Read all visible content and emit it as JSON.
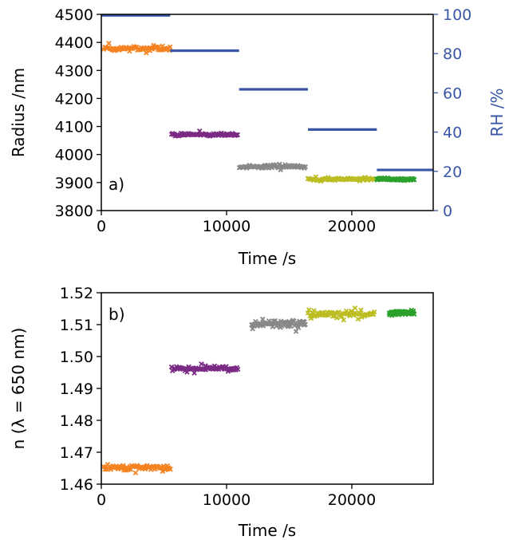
{
  "colors": {
    "rh_line": "#3a56a6",
    "rh_axis": "#3a56a6",
    "series_0": "#f58220",
    "series_1": "#7b2a84",
    "series_2": "#888888",
    "series_3": "#bcbd22",
    "series_4": "#2ca02c"
  },
  "chart_data": [
    {
      "type": "scatter",
      "panel_label": "a)",
      "xlabel": "Time /s",
      "ylabel": "Radius /nm",
      "y2label": "RH /%",
      "xlim": [
        0,
        26500
      ],
      "ylim": [
        3800,
        4500
      ],
      "y2lim": [
        0,
        100
      ],
      "xticks": [
        "0",
        "10000",
        "20000"
      ],
      "yticks": [
        "3800",
        "3900",
        "4000",
        "4100",
        "4200",
        "4300",
        "4400",
        "4500"
      ],
      "y2ticks": [
        "0",
        "20",
        "40",
        "60",
        "80",
        "100"
      ],
      "grid": false,
      "series": [
        {
          "segment": 0,
          "x_range": [
            200,
            5500
          ],
          "y_mean": 4378,
          "y_spread": 14
        },
        {
          "segment": 1,
          "x_range": [
            5600,
            10900
          ],
          "y_mean": 4071,
          "y_spread": 8
        },
        {
          "segment": 2,
          "x_range": [
            11000,
            16300
          ],
          "y_mean": 3956,
          "y_spread": 10
        },
        {
          "segment": 3,
          "x_range": [
            16500,
            21800
          ],
          "y_mean": 3912,
          "y_spread": 8
        },
        {
          "segment": 4,
          "x_range": [
            22000,
            25000
          ],
          "y_mean": 3912,
          "y_spread": 6
        }
      ],
      "rh_steps": [
        {
          "x_range": [
            0,
            5500
          ],
          "rh": 99.5
        },
        {
          "x_range": [
            5500,
            11000
          ],
          "rh": 81.5
        },
        {
          "x_range": [
            11000,
            16500
          ],
          "rh": 61.8
        },
        {
          "x_range": [
            16500,
            22000
          ],
          "rh": 41.3
        },
        {
          "x_range": [
            22000,
            26500
          ],
          "rh": 20.7
        }
      ]
    },
    {
      "type": "scatter",
      "panel_label": "b)",
      "xlabel": "Time /s",
      "ylabel": "n (λ = 650 nm)",
      "xlim": [
        0,
        26500
      ],
      "ylim": [
        1.46,
        1.52
      ],
      "xticks": [
        "0",
        "10000",
        "20000"
      ],
      "yticks": [
        "1.46",
        "1.47",
        "1.48",
        "1.49",
        "1.50",
        "1.51",
        "1.52"
      ],
      "grid": false,
      "series": [
        {
          "segment": 0,
          "x_range": [
            200,
            5500
          ],
          "y_mean": 1.4652,
          "y_spread": 0.0016
        },
        {
          "segment": 1,
          "x_range": [
            5600,
            10900
          ],
          "y_mean": 1.4962,
          "y_spread": 0.0012
        },
        {
          "segment": 2,
          "x_range": [
            12000,
            16300
          ],
          "y_mean": 1.5102,
          "y_spread": 0.002
        },
        {
          "segment": 3,
          "x_range": [
            16500,
            21800
          ],
          "y_mean": 1.5132,
          "y_spread": 0.0018
        },
        {
          "segment": 4,
          "x_range": [
            23000,
            25000
          ],
          "y_mean": 1.5138,
          "y_spread": 0.0012
        }
      ]
    }
  ]
}
